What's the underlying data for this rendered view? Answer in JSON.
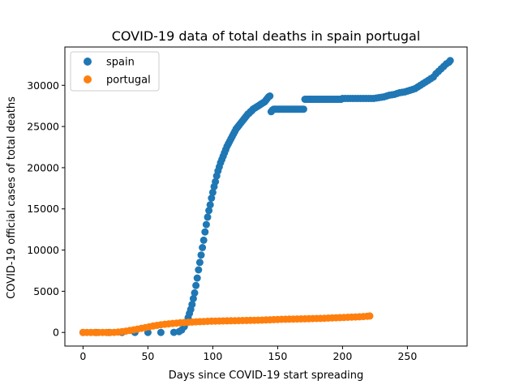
{
  "chart_data": {
    "type": "scatter",
    "title": "COVID-19 data of total deaths in spain portugal",
    "xlabel": "Days since COVID-19 start spreading",
    "ylabel": "COVID-19 official cases of total deaths",
    "xlim": [
      -14,
      296
    ],
    "ylim": [
      -1650,
      34650
    ],
    "xticks": [
      0,
      50,
      100,
      150,
      200,
      250
    ],
    "yticks": [
      0,
      5000,
      10000,
      15000,
      20000,
      25000,
      30000
    ],
    "legend": "top-left",
    "series": [
      {
        "name": "spain",
        "color": "#1f77b4",
        "x": [
          0,
          10,
          20,
          30,
          40,
          50,
          60,
          70,
          74,
          76,
          78,
          80,
          81,
          82,
          83,
          84,
          85,
          86,
          87,
          88,
          89,
          90,
          91,
          92,
          93,
          94,
          95,
          96,
          97,
          98,
          99,
          100,
          101,
          102,
          103,
          104,
          105,
          106,
          107,
          108,
          109,
          110,
          111,
          112,
          113,
          114,
          115,
          116,
          117,
          118,
          119,
          120,
          121,
          122,
          123,
          124,
          125,
          126,
          127,
          128,
          129,
          130,
          131,
          132,
          133,
          134,
          135,
          136,
          137,
          138,
          139,
          140,
          141,
          142,
          143,
          144,
          145,
          146,
          147,
          148,
          149,
          150,
          151,
          152,
          153,
          154,
          155,
          156,
          157,
          158,
          159,
          160,
          161,
          162,
          163,
          164,
          165,
          166,
          167,
          168,
          169,
          170,
          171,
          172,
          173,
          174,
          175,
          176,
          177,
          178,
          179,
          180,
          181,
          182,
          183,
          184,
          185,
          186,
          187,
          188,
          189,
          190,
          191,
          192,
          193,
          194,
          195,
          196,
          197,
          198,
          199,
          200,
          202,
          204,
          206,
          208,
          210,
          212,
          214,
          216,
          218,
          220,
          222,
          224,
          226,
          228,
          230,
          232,
          234,
          236,
          238,
          240,
          242,
          244,
          246,
          248,
          250,
          252,
          254,
          256,
          258,
          260,
          262,
          264,
          266,
          268,
          270,
          272,
          274,
          276,
          278,
          280,
          282,
          283
        ],
        "y": [
          0,
          0,
          0,
          0,
          0,
          0,
          0,
          10,
          100,
          300,
          700,
          1300,
          1800,
          2300,
          2800,
          3400,
          4100,
          4800,
          5700,
          6600,
          7600,
          8500,
          9400,
          10300,
          11200,
          12200,
          13100,
          14000,
          14800,
          15500,
          16300,
          17000,
          17700,
          18300,
          19000,
          19600,
          20100,
          20600,
          21000,
          21400,
          21800,
          22200,
          22600,
          22900,
          23200,
          23500,
          23800,
          24100,
          24400,
          24700,
          24900,
          25100,
          25300,
          25500,
          25700,
          25900,
          26100,
          26300,
          26500,
          26600,
          26800,
          26900,
          27100,
          27200,
          27300,
          27400,
          27500,
          27600,
          27700,
          27800,
          27900,
          28000,
          28200,
          28400,
          28600,
          28700,
          26800,
          27000,
          27100,
          27100,
          27100,
          27100,
          27100,
          27100,
          27100,
          27100,
          27100,
          27100,
          27100,
          27100,
          27100,
          27100,
          27100,
          27100,
          27100,
          27100,
          27100,
          27100,
          27100,
          27100,
          27100,
          27100,
          28300,
          28300,
          28300,
          28300,
          28300,
          28300,
          28300,
          28300,
          28300,
          28300,
          28300,
          28300,
          28300,
          28300,
          28300,
          28300,
          28300,
          28300,
          28300,
          28300,
          28300,
          28300,
          28300,
          28300,
          28300,
          28300,
          28300,
          28300,
          28300,
          28400,
          28400,
          28400,
          28400,
          28400,
          28400,
          28400,
          28400,
          28400,
          28400,
          28400,
          28400,
          28400,
          28450,
          28500,
          28550,
          28600,
          28700,
          28800,
          28850,
          28900,
          29000,
          29100,
          29150,
          29200,
          29300,
          29400,
          29500,
          29600,
          29800,
          30000,
          30200,
          30400,
          30600,
          30800,
          31000,
          31400,
          31700,
          32000,
          32300,
          32600,
          32800,
          33000
        ]
      },
      {
        "name": "portugal",
        "color": "#ff7f0e",
        "x": [
          0,
          3,
          6,
          9,
          12,
          15,
          18,
          21,
          24,
          27,
          30,
          33,
          36,
          39,
          42,
          45,
          48,
          51,
          54,
          57,
          60,
          63,
          66,
          69,
          72,
          75,
          78,
          81,
          84,
          87,
          90,
          93,
          96,
          99,
          102,
          105,
          108,
          111,
          114,
          117,
          120,
          123,
          126,
          129,
          132,
          135,
          138,
          141,
          144,
          147,
          150,
          153,
          156,
          159,
          162,
          165,
          168,
          171,
          174,
          177,
          180,
          183,
          186,
          189,
          192,
          195,
          198,
          201,
          204,
          207,
          210,
          213,
          216,
          219,
          221
        ],
        "y": [
          0,
          0,
          0,
          0,
          0,
          0,
          0,
          0,
          10,
          40,
          100,
          160,
          240,
          320,
          410,
          500,
          590,
          690,
          780,
          860,
          940,
          1000,
          1050,
          1090,
          1130,
          1170,
          1200,
          1230,
          1260,
          1290,
          1310,
          1330,
          1350,
          1370,
          1380,
          1390,
          1400,
          1410,
          1420,
          1430,
          1440,
          1450,
          1460,
          1470,
          1480,
          1490,
          1500,
          1520,
          1540,
          1560,
          1580,
          1600,
          1610,
          1620,
          1630,
          1640,
          1650,
          1660,
          1670,
          1680,
          1690,
          1700,
          1720,
          1740,
          1760,
          1780,
          1800,
          1820,
          1840,
          1860,
          1880,
          1900,
          1930,
          1970,
          2000
        ]
      }
    ]
  }
}
